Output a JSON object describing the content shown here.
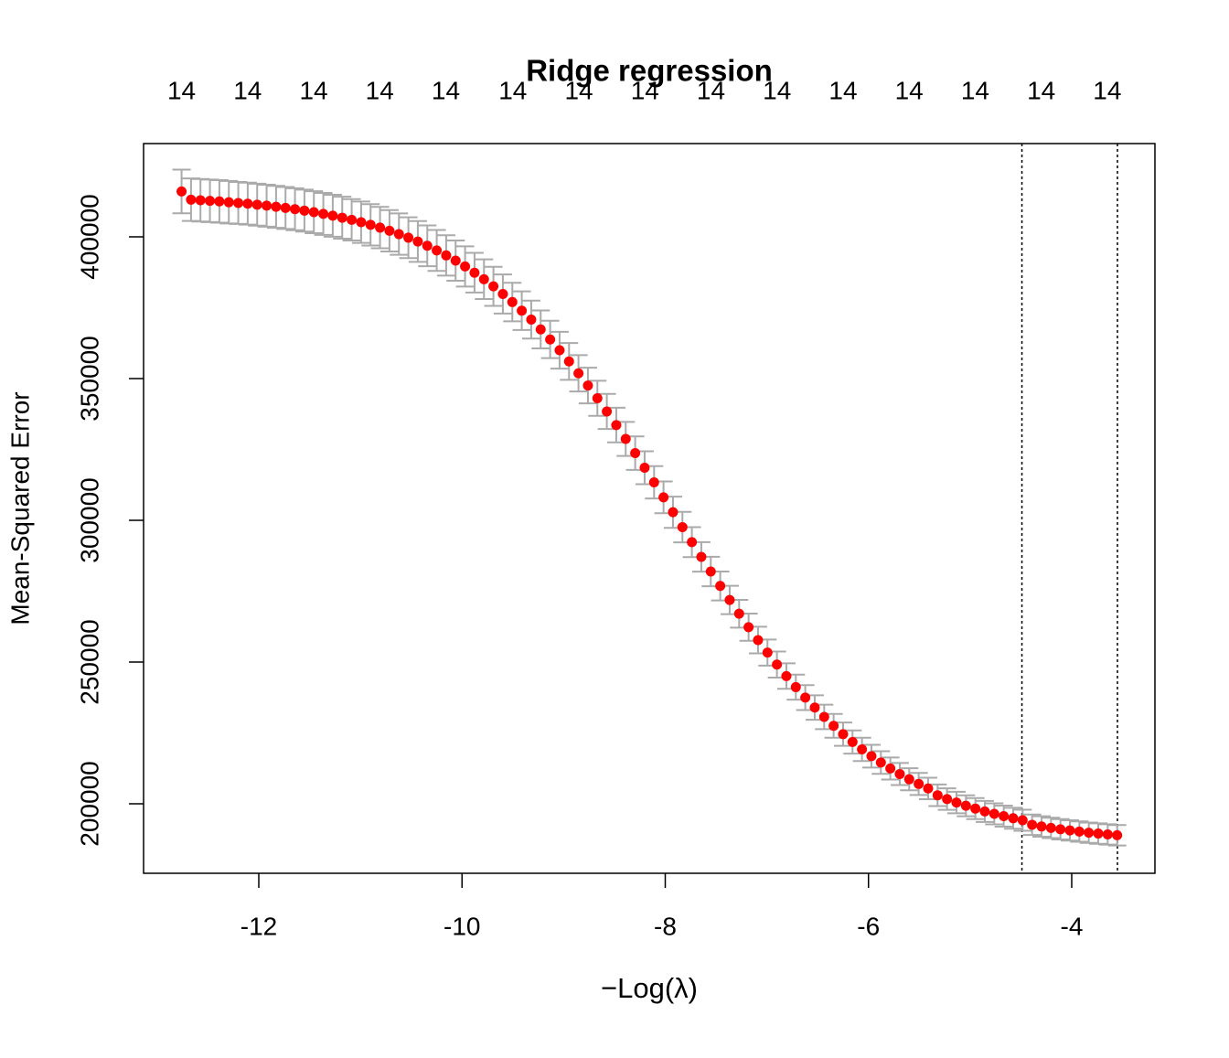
{
  "chart_data": {
    "type": "scatter",
    "title": "Ridge regression",
    "xlabel": "−Log(λ)",
    "ylabel": "Mean-Squared Error",
    "point_color": "#ff0000",
    "error_color": "#aaaaaa",
    "xlim": [
      -13.134,
      -3.181
    ],
    "ylim": [
      175484,
      432903
    ],
    "xticks": [
      -12,
      -10,
      -8,
      -6,
      -4
    ],
    "yticks": [
      200000,
      250000,
      300000,
      350000,
      400000
    ],
    "x2ticks": [
      {
        "value": -12.76,
        "label": "14"
      },
      {
        "value": -12.11,
        "label": "14"
      },
      {
        "value": -11.46,
        "label": "14"
      },
      {
        "value": -10.81,
        "label": "14"
      },
      {
        "value": -10.16,
        "label": "14"
      },
      {
        "value": -9.5,
        "label": "14"
      },
      {
        "value": -8.85,
        "label": "14"
      },
      {
        "value": -8.2,
        "label": "14"
      },
      {
        "value": -7.55,
        "label": "14"
      },
      {
        "value": -6.9,
        "label": "14"
      },
      {
        "value": -6.25,
        "label": "14"
      },
      {
        "value": -5.6,
        "label": "14"
      },
      {
        "value": -4.95,
        "label": "14"
      },
      {
        "value": -4.3,
        "label": "14"
      },
      {
        "value": -3.65,
        "label": "14"
      }
    ],
    "vlines": [
      -4.49,
      -3.55
    ],
    "x": [
      -12.76,
      -12.667,
      -12.574,
      -12.481,
      -12.388,
      -12.295,
      -12.202,
      -12.109,
      -12.016,
      -11.923,
      -11.83,
      -11.737,
      -11.644,
      -11.551,
      -11.458,
      -11.365,
      -11.272,
      -11.179,
      -11.086,
      -10.993,
      -10.9,
      -10.807,
      -10.714,
      -10.621,
      -10.528,
      -10.435,
      -10.342,
      -10.249,
      -10.156,
      -10.063,
      -9.97,
      -9.877,
      -9.784,
      -9.691,
      -9.598,
      -9.505,
      -9.412,
      -9.319,
      -9.226,
      -9.133,
      -9.04,
      -8.947,
      -8.854,
      -8.761,
      -8.668,
      -8.575,
      -8.482,
      -8.389,
      -8.296,
      -8.203,
      -8.11,
      -8.017,
      -7.924,
      -7.831,
      -7.738,
      -7.645,
      -7.552,
      -7.459,
      -7.366,
      -7.273,
      -7.18,
      -7.087,
      -6.994,
      -6.901,
      -6.808,
      -6.715,
      -6.622,
      -6.529,
      -6.436,
      -6.343,
      -6.25,
      -6.157,
      -6.064,
      -5.971,
      -5.878,
      -5.785,
      -5.692,
      -5.599,
      -5.506,
      -5.413,
      -5.32,
      -5.227,
      -5.134,
      -5.041,
      -4.948,
      -4.855,
      -4.762,
      -4.669,
      -4.576,
      -4.483,
      -4.39,
      -4.297,
      -4.204,
      -4.111,
      -4.018,
      -3.925,
      -3.832,
      -3.739,
      -3.646,
      -3.553
    ],
    "values": [
      416000,
      413100,
      412900,
      412700,
      412500,
      412200,
      411950,
      411700,
      411350,
      411000,
      410600,
      410200,
      409750,
      409250,
      408700,
      408100,
      407450,
      406750,
      406000,
      405150,
      404250,
      403250,
      402150,
      400950,
      399700,
      398350,
      396850,
      395200,
      393450,
      391600,
      389550,
      387350,
      385050,
      382550,
      379850,
      377000,
      373950,
      370800,
      367350,
      363800,
      360000,
      356050,
      351850,
      347550,
      343050,
      338400,
      333600,
      328700,
      323700,
      318550,
      313400,
      308100,
      302850,
      297600,
      292300,
      287100,
      281950,
      276850,
      271900,
      267050,
      262300,
      257750,
      253350,
      249100,
      245050,
      241150,
      237450,
      233950,
      230650,
      227500,
      224550,
      221800,
      219200,
      216800,
      214550,
      212450,
      210500,
      208650,
      207000,
      205400,
      203000,
      201650,
      200450,
      199300,
      198300,
      197300,
      196450,
      195650,
      194900,
      194200,
      192600,
      192000,
      191500,
      191000,
      190600,
      190200,
      189800,
      189500,
      189200,
      188900
    ],
    "errors": [
      7700,
      7500,
      7500,
      7500,
      7500,
      7500,
      7400,
      7400,
      7400,
      7400,
      7400,
      7400,
      7400,
      7400,
      7400,
      7400,
      7400,
      7400,
      7300,
      7300,
      7300,
      7300,
      7300,
      7300,
      7200,
      7200,
      7200,
      7200,
      7100,
      7100,
      7100,
      7000,
      7000,
      6900,
      6900,
      6800,
      6800,
      6700,
      6700,
      6600,
      6500,
      6500,
      6400,
      6300,
      6200,
      6200,
      6100,
      6000,
      5900,
      5800,
      5700,
      5600,
      5500,
      5400,
      5300,
      5200,
      5200,
      5100,
      5000,
      4900,
      4800,
      4700,
      4600,
      4600,
      4500,
      4400,
      4400,
      4300,
      4300,
      4200,
      4100,
      4100,
      4100,
      4000,
      4000,
      3900,
      3900,
      3900,
      3900,
      3800,
      3800,
      3800,
      3800,
      3700,
      3700,
      3700,
      3700,
      3700,
      3700,
      3700,
      3600,
      3600,
      3600,
      3600,
      3600,
      3600,
      3600,
      3600,
      3600,
      3600
    ]
  }
}
